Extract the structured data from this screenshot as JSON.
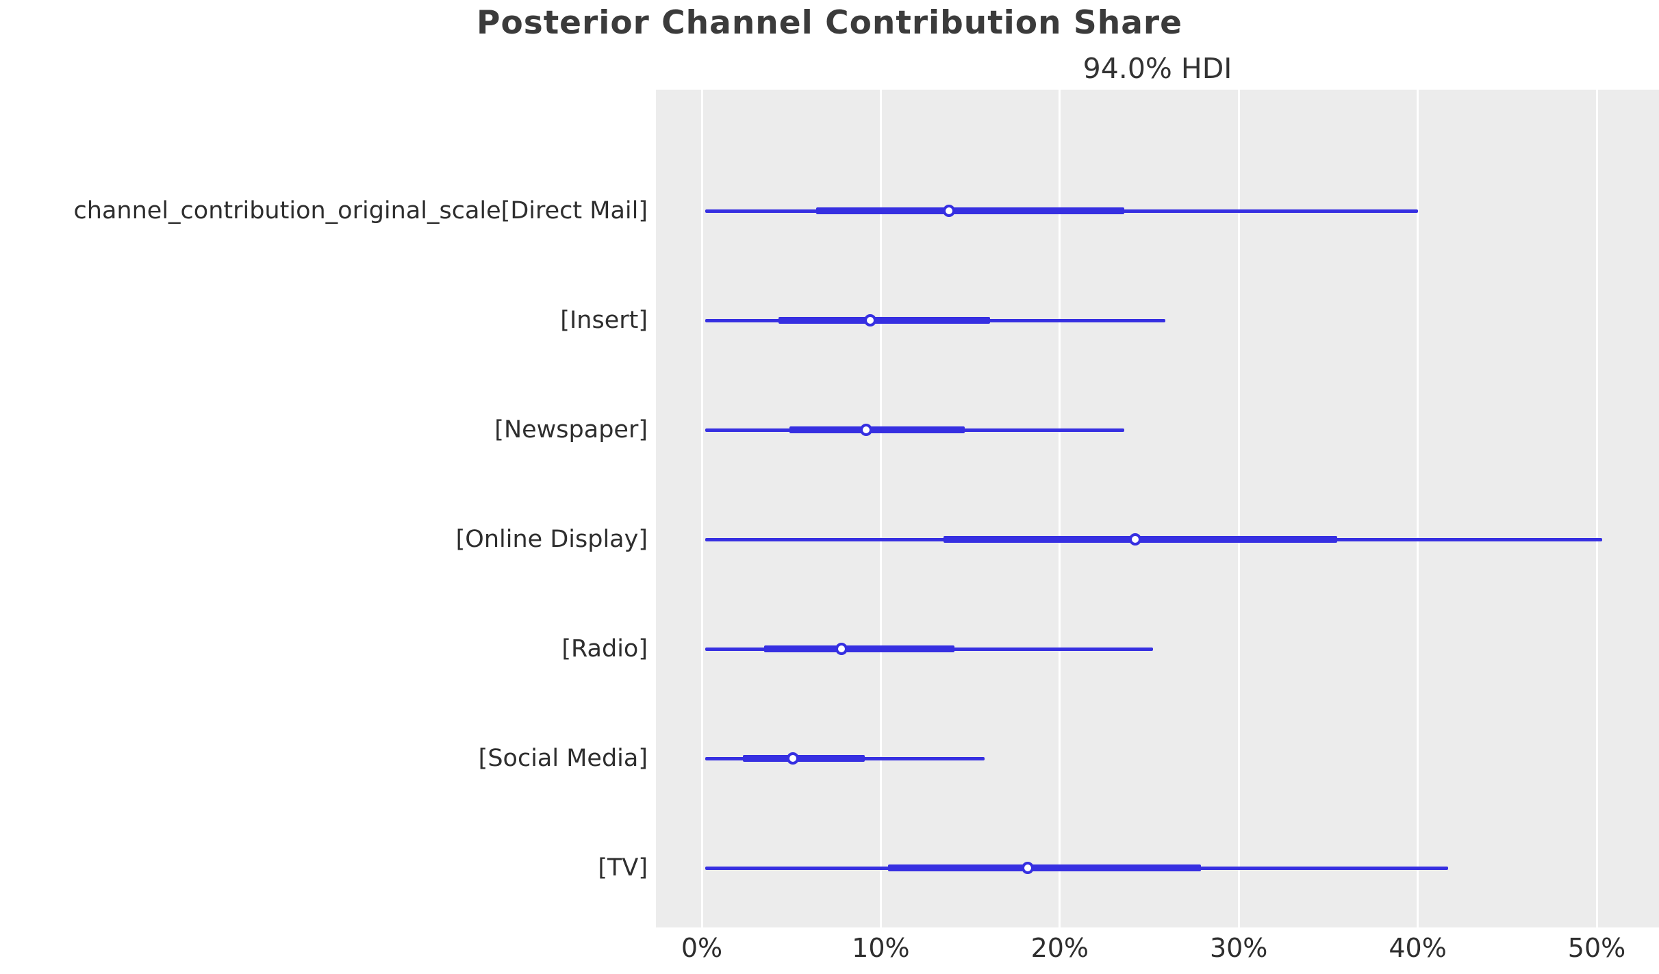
{
  "chart_data": {
    "type": "forest_plot_hdi",
    "title": "Posterior Channel Contribution Share",
    "subtitle": "94.0% HDI",
    "hdi_probability": 0.94,
    "xlabel": "",
    "ylabel": "",
    "x_unit": "percent",
    "xlim": [
      -2.6,
      53.5
    ],
    "x_ticks": [
      {
        "value": 0,
        "label": "0%"
      },
      {
        "value": 10,
        "label": "10%"
      },
      {
        "value": 20,
        "label": "20%"
      },
      {
        "value": 30,
        "label": "30%"
      },
      {
        "value": 40,
        "label": "40%"
      },
      {
        "value": 50,
        "label": "50%"
      }
    ],
    "grid": "vertical white gridlines on gray panel, no frame",
    "legend": "none",
    "colors": {
      "interval_blue": "#362fe1",
      "plot_background": "#ececec",
      "gridline": "#ffffff",
      "marker_fill": "#ffffff",
      "text": "#2e2e2e",
      "title_text": "#3b3b3b"
    },
    "rows": [
      {
        "label": "channel_contribution_original_scale[Direct Mail]",
        "hdi_low": 0.2,
        "hdi_high": 40.0,
        "q_low": 6.4,
        "q_high": 23.6,
        "median": 13.8
      },
      {
        "label": "[Insert]",
        "hdi_low": 0.2,
        "hdi_high": 25.9,
        "q_low": 4.3,
        "q_high": 16.1,
        "median": 9.4
      },
      {
        "label": "[Newspaper]",
        "hdi_low": 0.2,
        "hdi_high": 23.6,
        "q_low": 4.9,
        "q_high": 14.7,
        "median": 9.2
      },
      {
        "label": "[Online Display]",
        "hdi_low": 0.2,
        "hdi_high": 50.3,
        "q_low": 13.5,
        "q_high": 35.5,
        "median": 24.2
      },
      {
        "label": "[Radio]",
        "hdi_low": 0.2,
        "hdi_high": 25.2,
        "q_low": 3.5,
        "q_high": 14.1,
        "median": 7.8
      },
      {
        "label": "[Social Media]",
        "hdi_low": 0.2,
        "hdi_high": 15.8,
        "q_low": 2.3,
        "q_high": 9.1,
        "median": 5.1
      },
      {
        "label": "[TV]",
        "hdi_low": 0.2,
        "hdi_high": 41.7,
        "q_low": 10.4,
        "q_high": 27.9,
        "median": 18.2
      }
    ]
  }
}
